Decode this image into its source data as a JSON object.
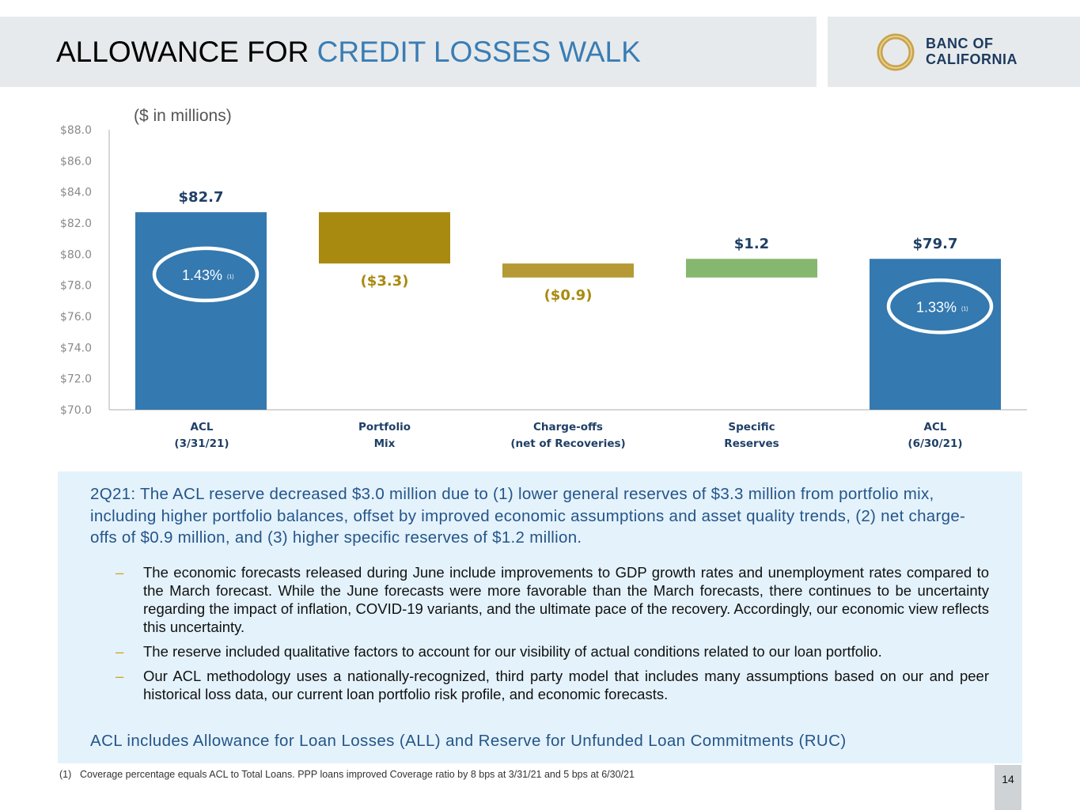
{
  "header": {
    "title_part1": "ALLOWANCE FOR ",
    "title_part2": "CREDIT LOSSES WALK",
    "logo_line1": "BANC OF",
    "logo_line2": "CALIFORNIA"
  },
  "colors": {
    "title_accent": "#3a7db4",
    "acl_bar": "#3479b0",
    "portfolio_bar": "#a98a10",
    "chargeoff_bar": "#b59a36",
    "specific_bar": "#86b76e",
    "label_blue": "#1f3f66",
    "label_gold": "#a98a10",
    "logo_gold": "#c9a24a"
  },
  "units_note": "($ in millions)",
  "chart_data": {
    "type": "bar",
    "subtype": "waterfall",
    "ylim": [
      70,
      88
    ],
    "yticks": [
      70,
      72,
      74,
      76,
      78,
      80,
      82,
      84,
      86,
      88
    ],
    "ytick_labels": [
      "$70.0",
      "$72.0",
      "$74.0",
      "$76.0",
      "$78.0",
      "$80.0",
      "$82.0",
      "$84.0",
      "$86.0",
      "$88.0"
    ],
    "categories": [
      {
        "line1": "ACL",
        "line2": "(3/31/21)"
      },
      {
        "line1": "Portfolio",
        "line2": "Mix"
      },
      {
        "line1": "Charge-offs",
        "line2": "(net of Recoveries)"
      },
      {
        "line1": "Specific",
        "line2": "Reserves"
      },
      {
        "line1": "ACL",
        "line2": "(6/30/21)"
      }
    ],
    "bars": [
      {
        "start": 70.0,
        "end": 82.7,
        "label": "$82.7",
        "kind": "total",
        "color_key": "acl_bar"
      },
      {
        "start": 82.7,
        "end": 79.4,
        "label": "($3.3)",
        "kind": "decrease",
        "color_key": "portfolio_bar"
      },
      {
        "start": 79.4,
        "end": 78.5,
        "label": "($0.9)",
        "kind": "decrease",
        "color_key": "chargeoff_bar"
      },
      {
        "start": 78.5,
        "end": 79.7,
        "label": "$1.2",
        "kind": "increase",
        "color_key": "specific_bar"
      },
      {
        "start": 70.0,
        "end": 79.7,
        "label": "$79.7",
        "kind": "total",
        "color_key": "acl_bar"
      }
    ],
    "coverage": [
      {
        "bar_index": 0,
        "text": "1.43%",
        "footnote": "(1)"
      },
      {
        "bar_index": 4,
        "text": "1.33%",
        "footnote": "(1)"
      }
    ],
    "grid": false,
    "legend": "none"
  },
  "summary": "2Q21: The ACL reserve decreased $3.0 million due to (1) lower general reserves of $3.3 million from portfolio mix, including higher portfolio balances, offset by improved economic assumptions and asset quality trends, (2) net charge-offs of $0.9 million, and (3) higher specific reserves of $1.2 million.",
  "bullet_marker": "–",
  "bullets": [
    "The economic forecasts released during June include improvements to GDP growth rates and unemployment rates compared to the March forecast. While the June forecasts were more favorable than the March forecasts, there continues to be uncertainty regarding the impact of inflation, COVID-19 variants, and the ultimate pace of the recovery. Accordingly, our economic view reflects this uncertainty.",
    "The reserve included qualitative factors to account for our visibility of actual conditions related to our loan portfolio.",
    "Our ACL methodology uses a nationally-recognized, third party model that includes many assumptions based on our and peer historical loss data, our current loan portfolio risk profile, and economic forecasts."
  ],
  "acl_note": "ACL includes Allowance for Loan Losses (ALL) and Reserve for Unfunded Loan Commitments (RUC)",
  "footnote": {
    "number": "(1)",
    "text": "Coverage percentage equals ACL to Total Loans. PPP loans improved Coverage ratio by 8 bps at 3/31/21 and 5 bps at 6/30/21"
  },
  "page_number": "14"
}
